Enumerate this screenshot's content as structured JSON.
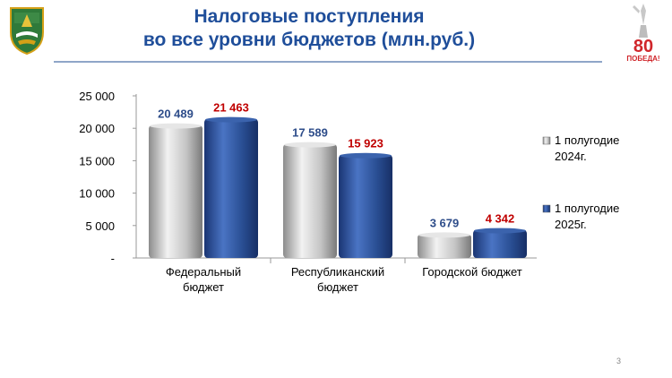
{
  "title": {
    "line1": "Налоговые поступления",
    "line2": "во все  уровни бюджетов (млн.руб.)"
  },
  "badge": {
    "number": "80",
    "text": "ПОБЕДА!"
  },
  "page_number": "3",
  "colors": {
    "title": "#1f4e9a",
    "series_2024": "#c2c2c2",
    "series_2025": "#2a4f94",
    "label_2024": "#2e4d8a",
    "label_2025": "#c00000",
    "badge": "#d0262b"
  },
  "chart_data": {
    "type": "bar",
    "categories": [
      [
        "Федеральный",
        "бюджет"
      ],
      [
        "Республиканский",
        "бюджет"
      ],
      [
        "Городской бюджет"
      ]
    ],
    "series": [
      {
        "name": "1 полугодие 2024г.",
        "legend_lines": [
          "1 полугодие",
          "2024г."
        ],
        "values": [
          20489,
          17589,
          3679
        ],
        "labels": [
          "20 489",
          "17 589",
          "3 679"
        ]
      },
      {
        "name": "1 полугодие 2025г.",
        "legend_lines": [
          "1 полугодие",
          "2025г."
        ],
        "values": [
          21463,
          15923,
          4342
        ],
        "labels": [
          "21 463",
          "15 923",
          "4 342"
        ]
      }
    ],
    "yticks": [
      "-",
      "5 000",
      "10 000",
      "15 000",
      "20 000",
      "25 000"
    ],
    "ylim": [
      0,
      25000
    ],
    "grid": false,
    "legend_position": "right"
  }
}
